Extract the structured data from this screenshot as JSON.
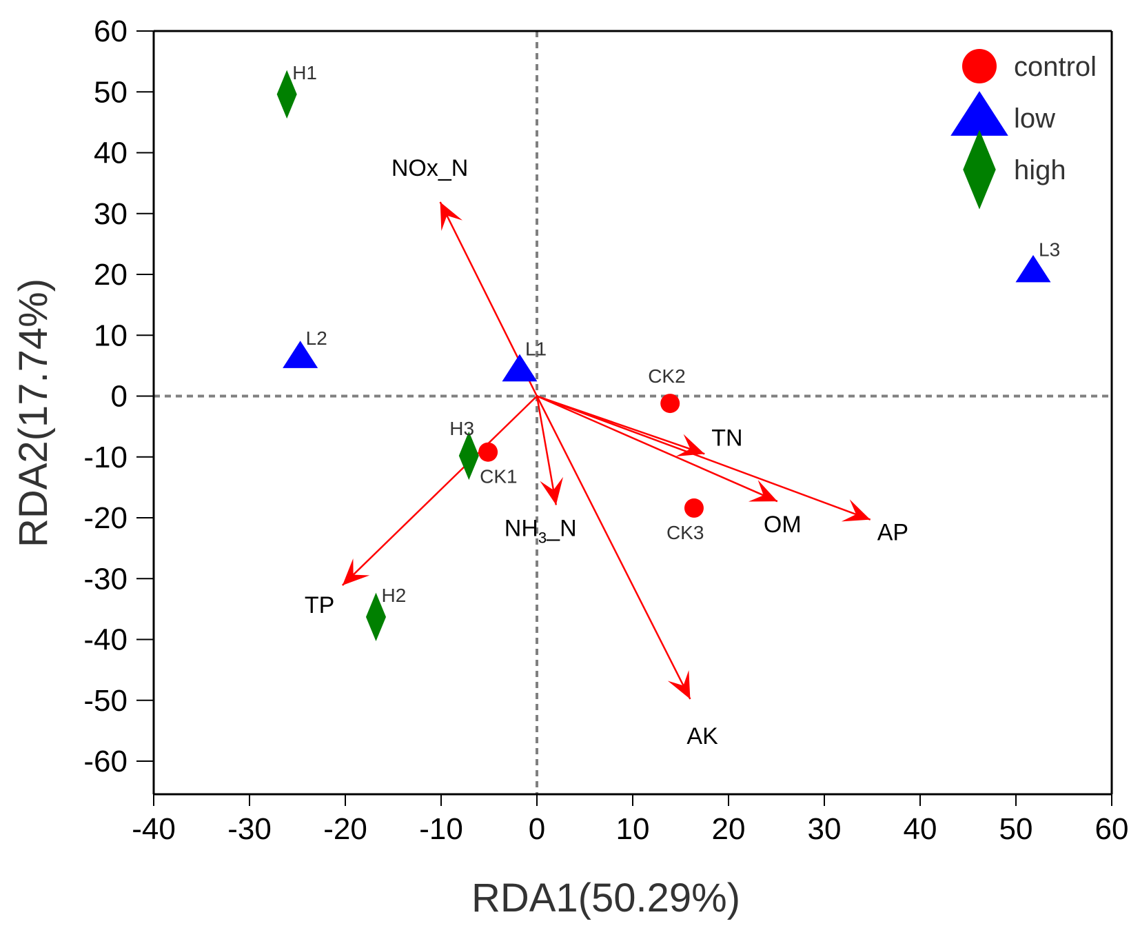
{
  "chart_data": {
    "type": "scatter",
    "subtype": "RDA biplot",
    "title": "",
    "xlabel": "RDA1(50.29%)",
    "ylabel": "RDA2(17.74%)",
    "xlim": [
      -40,
      60
    ],
    "ylim": [
      -60,
      60
    ],
    "xticks": [
      -40,
      -30,
      -20,
      -10,
      0,
      10,
      20,
      30,
      40,
      50,
      60
    ],
    "yticks": [
      60,
      50,
      40,
      30,
      20,
      10,
      0,
      -10,
      -20,
      -30,
      -40,
      -50,
      -60
    ],
    "grid": false,
    "reference_lines": {
      "x": 0,
      "y": 0,
      "style": "dotted",
      "color": "#808080"
    },
    "legend": {
      "position": "top-right",
      "entries": [
        {
          "label": "control",
          "marker": "circle",
          "color": "#ff0000"
        },
        {
          "label": "low",
          "marker": "triangle",
          "color": "#0000ff"
        },
        {
          "label": "high",
          "marker": "diamond",
          "color": "#008000"
        }
      ]
    },
    "series": [
      {
        "name": "control",
        "marker": "circle",
        "color": "#ff0000",
        "points": [
          {
            "label": "CK1",
            "x": -5.1,
            "y": -9.2
          },
          {
            "label": "CK2",
            "x": 13.9,
            "y": -1.2
          },
          {
            "label": "CK3",
            "x": 16.4,
            "y": -18.4
          }
        ]
      },
      {
        "name": "low",
        "marker": "triangle",
        "color": "#0000ff",
        "points": [
          {
            "label": "L1",
            "x": -1.8,
            "y": 4.2
          },
          {
            "label": "L2",
            "x": -24.7,
            "y": 6.4
          },
          {
            "label": "L3",
            "x": 51.8,
            "y": 20.5
          }
        ]
      },
      {
        "name": "high",
        "marker": "diamond",
        "color": "#008000",
        "points": [
          {
            "label": "H1",
            "x": -26.1,
            "y": 49.6
          },
          {
            "label": "H2",
            "x": -16.8,
            "y": -36.3
          },
          {
            "label": "H3",
            "x": -7.1,
            "y": -9.8
          }
        ]
      }
    ],
    "vectors": {
      "color": "#ff0000",
      "items": [
        {
          "label": "NOx_N",
          "x": -10.1,
          "y": 31.9
        },
        {
          "label": "TN",
          "x": 17.5,
          "y": -9.5
        },
        {
          "label": "OM",
          "x": 25.1,
          "y": -17.3
        },
        {
          "label": "AP",
          "x": 34.8,
          "y": -20.3
        },
        {
          "label": "NH3_N",
          "label_main": "NH",
          "label_sub": "3",
          "label_tail": "_N",
          "x": 2.0,
          "y": -17.9
        },
        {
          "label": "AK",
          "x": 16.0,
          "y": -49.8
        },
        {
          "label": "TP",
          "x": -20.3,
          "y": -31.1
        }
      ]
    }
  }
}
